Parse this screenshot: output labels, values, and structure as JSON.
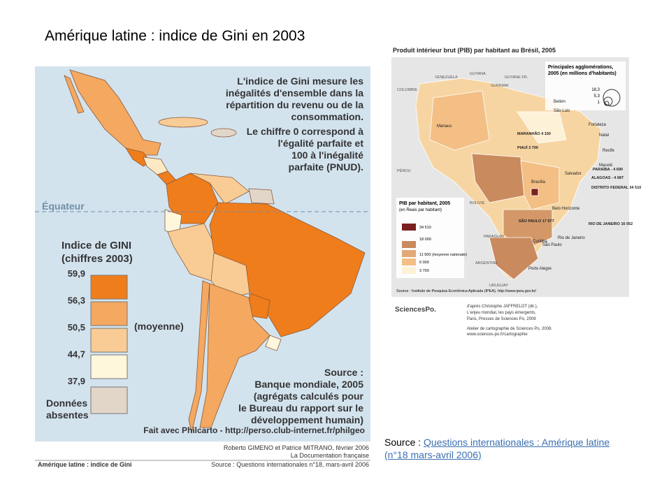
{
  "title": "Amérique latine : indice de Gini en 2003",
  "left_map": {
    "description": [
      "L'indice de Gini mesure les",
      "inégalités d'ensemble dans la",
      "répartition du revenu ou de la",
      "consommation.",
      "Le chiffre 0 correspond à",
      "l'égalité parfaite et",
      "100 à l'inégalité",
      "parfaite (PNUD)."
    ],
    "equator": "Équateur",
    "legend_title": [
      "Indice de GINI",
      "(chiffres 2003)"
    ],
    "legend_values": [
      "59,9",
      "56,3",
      "50,5",
      "44,7",
      "37,9"
    ],
    "legend_mean": "(moyenne)",
    "legend_absent": [
      "Données",
      "absentes"
    ],
    "source": [
      "Source :",
      "Banque mondiale, 2005",
      "(agrégats calculés pour",
      "le Bureau du rapport sur le",
      "développement humain)"
    ],
    "made_with": "Fait avec Philcarto - http://perso.club-internet.fr/philgeo",
    "authors": "Roberto GIMENO et Patrice MITRANO, février 2006",
    "publisher": "La Documentation française",
    "caption": "Amérique latine : indice de Gini",
    "caption_source": "Source : Questions internationales n°18, mars-avril 2006"
  },
  "right_map": {
    "title": "Produit intérieur brut (PIB) par habitant au Brésil, 2005",
    "agglo_title": [
      "Principales agglomérations,",
      "2005 (en millions d'habitants)"
    ],
    "agglo_sizes": [
      "18,3",
      "5,3",
      "1"
    ],
    "legend_title": [
      "PIB par habitant, 2005",
      "(en Reais par habitant)"
    ],
    "legend_values": [
      "34 510",
      "18 000",
      "11 500 (moyenne nationale)",
      "6 000",
      "3 700"
    ],
    "countries": [
      "VENEZUELA",
      "GUYANA",
      "SURINAM",
      "GUYANE FR.",
      "COLOMBIE",
      "PÉROU",
      "BOLIVIE",
      "PARAGUAY",
      "ARGENTINE",
      "URUGUAY"
    ],
    "cities": [
      "Belém",
      "São Luis",
      "Fortaleza",
      "Manaus",
      "Natal",
      "Recife",
      "Maceió",
      "Salvador",
      "Brasília",
      "Belo Horizonte",
      "Rio de Janeiro",
      "São Paulo",
      "Curitiba",
      "Porto Alegre"
    ],
    "states": [
      "MARANHÃO 4 150",
      "PIAUÍ 3 700",
      "PARAÍBA - 4 690",
      "ALAGOAS - 4 687",
      "DISTRITO FEDERAL 34 510",
      "SÃO PAULO 17 977",
      "RIO DE JANEIRO 16 052"
    ],
    "source": "Source : Instituto de Pesquisa Econômica Aplicada (IPEA), http://www.ipea.gov.br/",
    "logo": "SciencesPo.",
    "credits": [
      "d'après Christophe JAFFRELOT (dir.),",
      "L'enjeu mondial, les pays émergents,",
      "Paris, Presses de Sciences Po, 2008"
    ],
    "atelier": [
      "Atelier de cartographie de Sciences Po, 2008.",
      "www.sciences-po.fr/cartographie"
    ]
  },
  "source_prefix": "Source : ",
  "source_link": "Questions internationales : Amérique latine (n°18 mars-avril 2006)"
}
